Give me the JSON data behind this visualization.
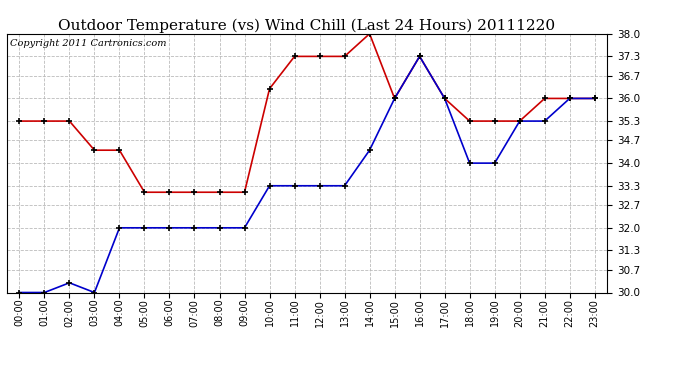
{
  "title": "Outdoor Temperature (vs) Wind Chill (Last 24 Hours) 20111220",
  "copyright": "Copyright 2011 Cartronics.com",
  "hours": [
    0,
    1,
    2,
    3,
    4,
    5,
    6,
    7,
    8,
    9,
    10,
    11,
    12,
    13,
    14,
    15,
    16,
    17,
    18,
    19,
    20,
    21,
    22,
    23
  ],
  "x_labels": [
    "00:00",
    "01:00",
    "02:00",
    "03:00",
    "04:00",
    "05:00",
    "06:00",
    "07:00",
    "08:00",
    "09:00",
    "10:00",
    "11:00",
    "12:00",
    "13:00",
    "14:00",
    "15:00",
    "16:00",
    "17:00",
    "18:00",
    "19:00",
    "20:00",
    "21:00",
    "22:00",
    "23:00"
  ],
  "temp_red": [
    35.3,
    35.3,
    35.3,
    34.4,
    34.4,
    33.1,
    33.1,
    33.1,
    33.1,
    33.1,
    36.3,
    37.3,
    37.3,
    37.3,
    38.0,
    36.0,
    37.3,
    36.0,
    35.3,
    35.3,
    35.3,
    36.0,
    36.0,
    36.0
  ],
  "wind_chill_blue": [
    30.0,
    30.0,
    30.3,
    30.0,
    32.0,
    32.0,
    32.0,
    32.0,
    32.0,
    32.0,
    33.3,
    33.3,
    33.3,
    33.3,
    34.4,
    36.0,
    37.3,
    36.0,
    34.0,
    34.0,
    35.3,
    35.3,
    36.0,
    36.0
  ],
  "ylim_min": 30.0,
  "ylim_max": 38.0,
  "y_ticks": [
    30.0,
    30.7,
    31.3,
    32.0,
    32.7,
    33.3,
    34.0,
    34.7,
    35.3,
    36.0,
    36.7,
    37.3,
    38.0
  ],
  "red_color": "#cc0000",
  "blue_color": "#0000cc",
  "bg_color": "#ffffff",
  "grid_color": "#bbbbbb",
  "title_fontsize": 11,
  "copyright_fontsize": 7
}
